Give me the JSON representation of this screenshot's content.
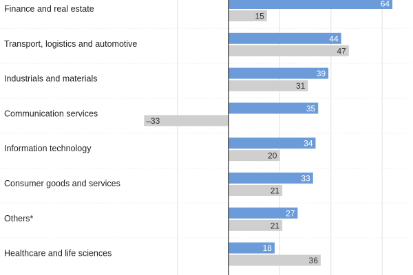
{
  "chart_data": {
    "type": "bar",
    "orientation": "horizontal",
    "categories": [
      "Finance and real estate",
      "Transport, logistics and automotive",
      "Industrials and materials",
      "Communication services",
      "Information technology",
      "Consumer goods and services",
      "Others*",
      "Healthcare and life sciences"
    ],
    "series": [
      {
        "values": [
          64,
          44,
          39,
          35,
          34,
          33,
          27,
          18
        ],
        "color": "#6b9bd8"
      },
      {
        "values": [
          15,
          47,
          31,
          -33,
          20,
          21,
          21,
          36
        ],
        "color": "#cfcfcf"
      }
    ],
    "value_labels": [
      [
        "64",
        "44",
        "39",
        "35",
        "34",
        "33",
        "27",
        "18"
      ],
      [
        "15",
        "47",
        "31",
        "–33",
        "20",
        "21",
        "21",
        "36"
      ]
    ],
    "xlim": [
      -40,
      65
    ],
    "grid_values": [
      -20,
      20,
      40,
      60
    ],
    "zero_line": true
  }
}
